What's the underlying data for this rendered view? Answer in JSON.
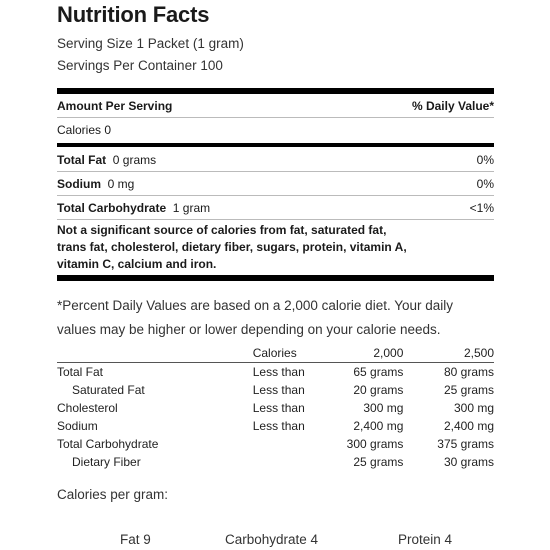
{
  "title": "Nutrition Facts",
  "serving_size": "Serving Size 1 Packet (1 gram)",
  "servings_per_container": "Servings Per Container 100",
  "header": {
    "amount_per_serving": "Amount Per Serving",
    "daily_value": "% Daily Value*"
  },
  "calories": "Calories 0",
  "nutrients": [
    {
      "name": "Total Fat",
      "amount": "0 grams",
      "dv": "0%"
    },
    {
      "name": "Sodium",
      "amount": "0 mg",
      "dv": "0%"
    },
    {
      "name": "Total Carbohydrate",
      "amount": "1 gram",
      "dv": "<1%"
    }
  ],
  "not_significant": "Not a significant source of calories from fat, saturated fat, trans fat, cholesterol, dietary fiber, sugars, protein, vitamin A, vitamin C, calcium and iron.",
  "footnote": "*Percent Daily Values are based on a 2,000 calorie diet. Your daily values may be higher or lower depending on your calorie needs.",
  "dv_table": {
    "headers": [
      "",
      "Calories",
      "2,000",
      "2,500"
    ],
    "rows": [
      [
        "Total Fat",
        "Less than",
        "65 grams",
        "80 grams"
      ],
      [
        "Saturated Fat",
        "Less than",
        "20 grams",
        "25 grams"
      ],
      [
        "Cholesterol",
        "Less than",
        "300 mg",
        "300 mg"
      ],
      [
        "Sodium",
        "Less than",
        "2,400 mg",
        "2,400 mg"
      ],
      [
        "Total Carbohydrate",
        "",
        "300 grams",
        "375 grams"
      ],
      [
        "Dietary Fiber",
        "",
        "25 grams",
        "30 grams"
      ]
    ]
  },
  "calories_per_gram": {
    "label": "Calories per gram:",
    "fat": "Fat 9",
    "carbohydrate": "Carbohydrate 4",
    "protein": "Protein 4"
  }
}
